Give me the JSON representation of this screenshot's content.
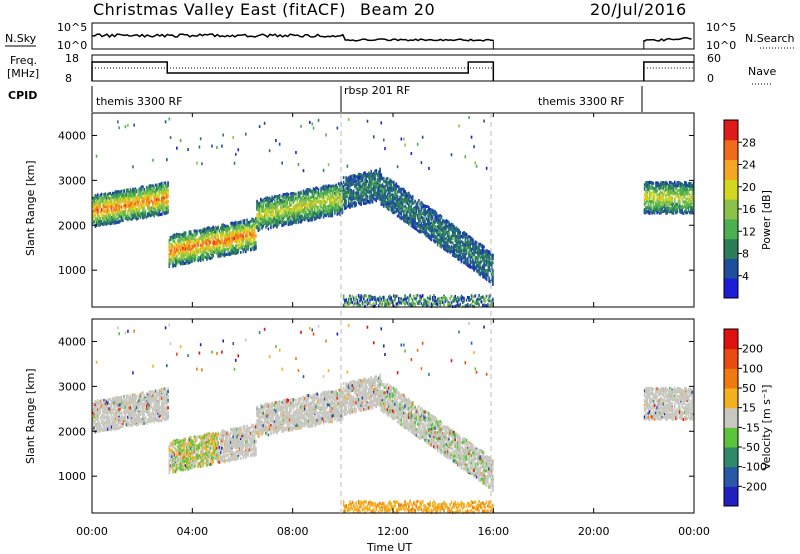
{
  "header": {
    "title": "Christmas Valley East (fitACF)",
    "beam": "Beam 20",
    "date": "20/Jul/2016"
  },
  "top_panels": {
    "nsky_label": "N.Sky",
    "nsky_ticks": [
      "10^5",
      "10^0"
    ],
    "nsky_right_ticks": [
      "10^5",
      "10^0"
    ],
    "nsearch_label": "N.Search",
    "freq_label_1": "Freq.",
    "freq_label_2": "[MHz]",
    "freq_ticks": [
      "18",
      "8"
    ],
    "nave_ticks": [
      "60",
      "0"
    ],
    "nave_label": "Nave",
    "cpid_label": "CPID",
    "cpid_segments": [
      "themis 3300 RF",
      "rbsp 201 RF",
      "themis 3300 RF"
    ]
  },
  "colors": {
    "power_scale": [
      "#1b1bd8",
      "#1e4f9c",
      "#2e7d5a",
      "#4caf50",
      "#8bc34a",
      "#d4d71f",
      "#f5a623",
      "#f06a1a",
      "#e01b1b"
    ],
    "velocity_scale": [
      "#2020c0",
      "#2a58a8",
      "#2f8a6a",
      "#5cc33a",
      "#c8c8c0",
      "#f5b020",
      "#f07a10",
      "#e84a10",
      "#e01010"
    ],
    "grey": "#c8c8c0",
    "dash": "#bbbbbb"
  },
  "chart_data": [
    {
      "type": "heatmap",
      "name_on_chart": "",
      "xlabel": "",
      "ylabel": "Slant Range [km]",
      "ylim": [
        180,
        4500
      ],
      "yticks": [
        1000,
        2000,
        3000,
        4000
      ],
      "xlim_hours": [
        0,
        24
      ],
      "colorbar": {
        "label": "Power [dB]",
        "ticks": [
          "4",
          "8",
          "12",
          "16",
          "20",
          "24",
          "28"
        ],
        "range": [
          0,
          30
        ]
      },
      "echo_bands": [
        {
          "t": [
            0.0,
            3.0
          ],
          "range_center": [
            2300,
            2600
          ],
          "value": "high"
        },
        {
          "t": [
            3.0,
            6.5
          ],
          "range_center": [
            1400,
            1800
          ],
          "value": "high"
        },
        {
          "t": [
            6.5,
            10.0
          ],
          "range_center": [
            2200,
            2600
          ],
          "value": "medium"
        },
        {
          "t": [
            10.0,
            11.5
          ],
          "range_center": [
            2700,
            2900
          ],
          "value": "low"
        },
        {
          "t": [
            11.5,
            16.0
          ],
          "range_center": [
            2800,
            1000
          ],
          "value": "low"
        },
        {
          "t": [
            22.0,
            24.0
          ],
          "range_center": [
            2600,
            2600
          ],
          "value": "medium"
        }
      ]
    },
    {
      "type": "heatmap",
      "xlabel": "Time UT",
      "ylabel": "Slant Range [km]",
      "ylim": [
        180,
        4500
      ],
      "yticks": [
        1000,
        2000,
        3000,
        4000
      ],
      "xticks": [
        "00:00",
        "04:00",
        "08:00",
        "12:00",
        "16:00",
        "20:00",
        "00:00"
      ],
      "xlim_hours": [
        0,
        24
      ],
      "colorbar": {
        "label": "Velocity [m s⁻¹]",
        "ticks": [
          "200",
          "100",
          "50",
          "15",
          "-15",
          "-50",
          "-100",
          "-200"
        ],
        "range": [
          -250,
          250
        ]
      }
    }
  ]
}
